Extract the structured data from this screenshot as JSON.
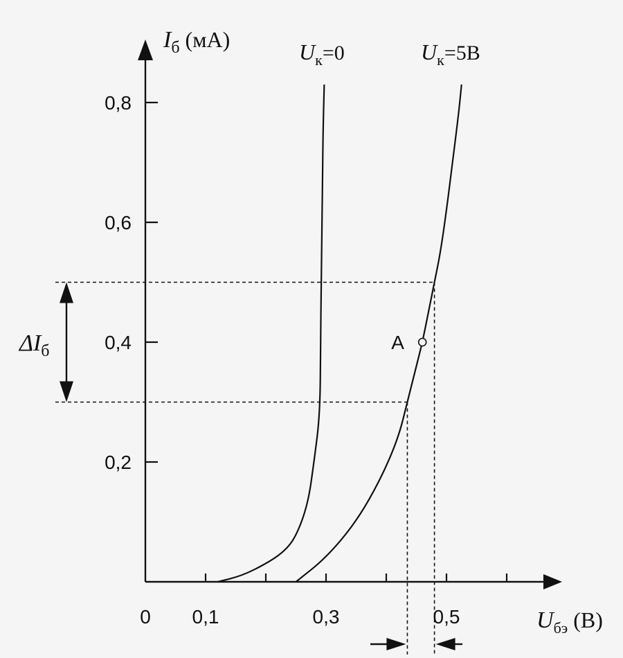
{
  "chart_data": {
    "type": "line",
    "y_axis": {
      "symbol": "I",
      "subscript": "б",
      "unit": " (мА)",
      "ticks": [
        {
          "value": 0.2,
          "label": "0,2"
        },
        {
          "value": 0.4,
          "label": "0,4"
        },
        {
          "value": 0.6,
          "label": "0,6"
        },
        {
          "value": 0.8,
          "label": "0,8"
        }
      ],
      "range": [
        0,
        0.86
      ]
    },
    "x_axis": {
      "symbol": "U",
      "subscript": "бэ",
      "unit": " (В)",
      "tick_values": [
        0.1,
        0.2,
        0.3,
        0.4,
        0.5,
        0.6
      ],
      "labels": [
        {
          "value": 0,
          "label": "0"
        },
        {
          "value": 0.1,
          "label": "0,1"
        },
        {
          "value": 0.3,
          "label": "0,3"
        },
        {
          "value": 0.5,
          "label": "0,5"
        }
      ],
      "range": [
        0,
        0.7
      ]
    },
    "series": [
      {
        "name_symbol": "U",
        "name_sub": "к",
        "name_value": "=0",
        "points": [
          [
            0.12,
            0
          ],
          [
            0.16,
            0.01
          ],
          [
            0.2,
            0.03
          ],
          [
            0.23,
            0.05
          ],
          [
            0.25,
            0.075
          ],
          [
            0.27,
            0.13
          ],
          [
            0.28,
            0.2
          ],
          [
            0.29,
            0.28
          ],
          [
            0.291,
            0.4
          ],
          [
            0.292,
            0.5
          ],
          [
            0.294,
            0.65
          ],
          [
            0.295,
            0.75
          ],
          [
            0.297,
            0.83
          ]
        ]
      },
      {
        "name_symbol": "U",
        "name_sub": "к",
        "name_value": "=5В",
        "points": [
          [
            0.25,
            0
          ],
          [
            0.3,
            0.04
          ],
          [
            0.35,
            0.1
          ],
          [
            0.39,
            0.17
          ],
          [
            0.42,
            0.24
          ],
          [
            0.435,
            0.3
          ],
          [
            0.45,
            0.36
          ],
          [
            0.46,
            0.4
          ],
          [
            0.47,
            0.45
          ],
          [
            0.48,
            0.5
          ],
          [
            0.49,
            0.55
          ],
          [
            0.5,
            0.62
          ],
          [
            0.51,
            0.7
          ],
          [
            0.52,
            0.78
          ],
          [
            0.525,
            0.83
          ]
        ]
      }
    ],
    "annotations": {
      "delta_symbol": "ΔI",
      "delta_sub": "б",
      "point_label": "A",
      "point": [
        0.46,
        0.4
      ],
      "dashed_levels_y": [
        0.3,
        0.5
      ],
      "dashed_x": [
        0.435,
        0.48
      ]
    }
  }
}
